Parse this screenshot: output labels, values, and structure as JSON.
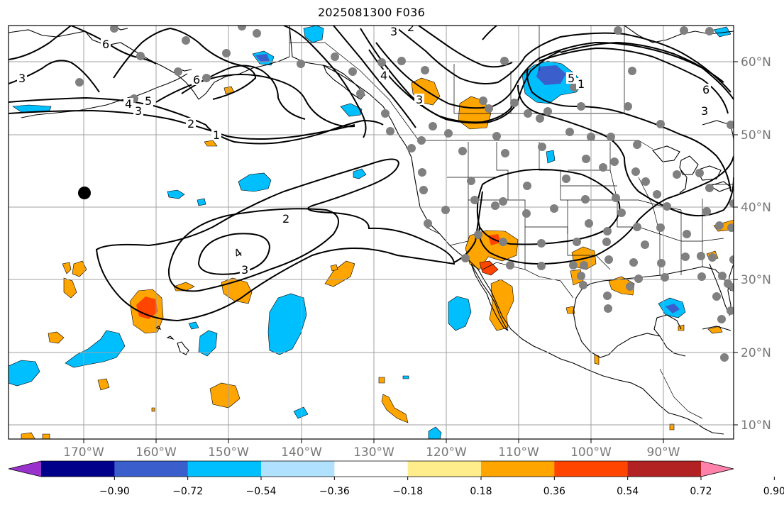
{
  "title": "2025081300 F036",
  "lon_labels": [
    "170°W",
    "160°W",
    "150°W",
    "140°W",
    "130°W",
    "120°W",
    "110°W",
    "100°W",
    "90°W"
  ],
  "lat_labels": [
    "60°N",
    "50°N",
    "40°N",
    "30°N",
    "20°N",
    "10°N"
  ],
  "contour_labels": [
    "3",
    "2",
    "3",
    "6",
    "5",
    "4",
    "3",
    "2",
    "1",
    "3",
    "4",
    "6",
    "5",
    "1",
    "6",
    "3",
    "2",
    "3",
    "4"
  ],
  "colorbar": {
    "ticks": [
      "−0.90",
      "−0.72",
      "−0.54",
      "−0.36",
      "−0.18",
      "0.18",
      "0.36",
      "0.54",
      "0.72",
      "0.90"
    ],
    "colors": [
      "#9932cc",
      "#00008b",
      "#3a5fcd",
      "#00bfff",
      "#b0e2ff",
      "#ffffff",
      "#ffec8b",
      "#ffa500",
      "#ff4500",
      "#b22222",
      "#ff82ab"
    ]
  },
  "colors": {
    "coast": "#000000",
    "grid": "#a0a0a0",
    "station": "#808080",
    "contour": "#000000"
  }
}
